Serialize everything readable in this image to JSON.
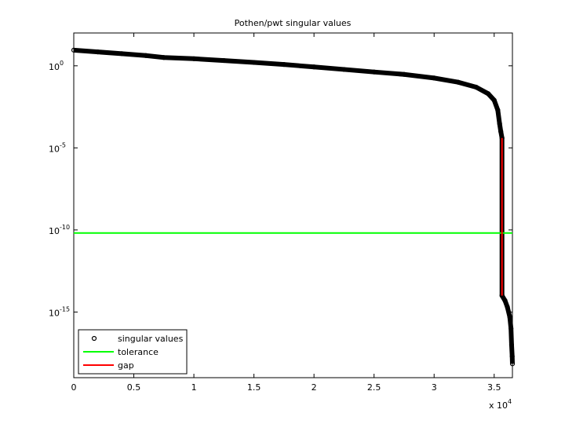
{
  "chart_data": {
    "type": "line",
    "title": "Pothen/pwt singular values",
    "yscale": "log",
    "xlim": [
      0,
      36519
    ],
    "ylim": [
      1e-19,
      100
    ],
    "xticks": [
      {
        "value": 0,
        "label": "0"
      },
      {
        "value": 5000,
        "label": "0.5"
      },
      {
        "value": 10000,
        "label": "1"
      },
      {
        "value": 15000,
        "label": "1.5"
      },
      {
        "value": 20000,
        "label": "2"
      },
      {
        "value": 25000,
        "label": "2.5"
      },
      {
        "value": 30000,
        "label": "3"
      },
      {
        "value": 35000,
        "label": "3.5"
      }
    ],
    "x_multiplier": {
      "base": "x 10",
      "exponent": "4"
    },
    "yticks": [
      {
        "value": 1,
        "label": "10^0"
      },
      {
        "value": 1e-05,
        "label": "10^-5"
      },
      {
        "value": 1e-10,
        "label": "10^-10"
      },
      {
        "value": 1e-15,
        "label": "10^-15"
      }
    ],
    "legend_position": "lower-left",
    "series": [
      {
        "name": "singular values",
        "color": "#000000",
        "style": "circles",
        "x": [
          0,
          2000,
          4000,
          6000,
          7500,
          10000,
          12500,
          15000,
          17500,
          20000,
          22500,
          25000,
          27500,
          30000,
          32000,
          33500,
          34500,
          35000,
          35300,
          35450,
          35550,
          35650,
          35651,
          35900,
          36100,
          36300,
          36400,
          36450,
          36500,
          36519
        ],
        "values": [
          9,
          7,
          5.5,
          4.2,
          3.2,
          2.7,
          2.1,
          1.6,
          1.2,
          0.85,
          0.6,
          0.42,
          0.3,
          0.18,
          0.1,
          0.05,
          0.02,
          0.008,
          0.002,
          0.0003,
          0.0001,
          4e-05,
          1e-14,
          5e-15,
          2e-15,
          5e-16,
          1e-16,
          1e-17,
          2e-18,
          7e-19
        ]
      },
      {
        "name": "tolerance",
        "color": "#00ff00",
        "style": "line",
        "x": [
          0,
          36519
        ],
        "values": [
          6.5e-11,
          6.5e-11
        ]
      },
      {
        "name": "gap",
        "color": "#ff0000",
        "style": "line",
        "x": [
          35650,
          35650
        ],
        "values": [
          4e-05,
          1e-14
        ]
      }
    ]
  }
}
